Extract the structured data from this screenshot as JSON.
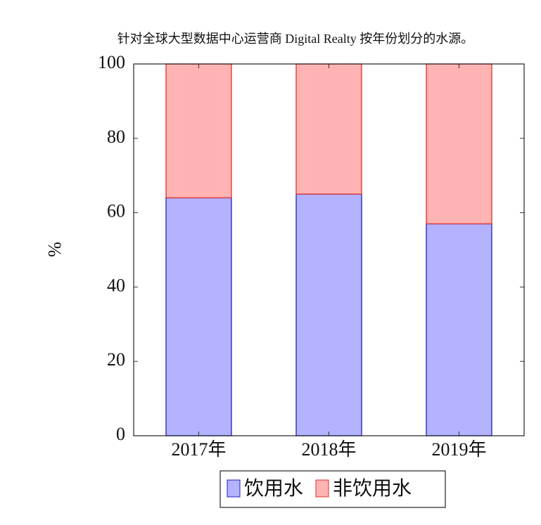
{
  "chart_data": {
    "type": "bar",
    "stacked": true,
    "title": "针对全球大型数据中心运营商 Digital Realty 按年份划分的水源。",
    "y_label": "%",
    "categories": [
      "2017年",
      "2018年",
      "2019年"
    ],
    "series": [
      {
        "name": "饮用水",
        "color": "#b3b3ff",
        "edge": "#2020c0",
        "values": [
          64,
          65,
          57
        ]
      },
      {
        "name": "非饮用水",
        "color": "#ffb3b3",
        "edge": "#e03030",
        "values": [
          36,
          35,
          43
        ]
      }
    ],
    "ylim": [
      0,
      100
    ],
    "yticks": [
      0,
      20,
      40,
      60,
      80,
      100
    ]
  }
}
